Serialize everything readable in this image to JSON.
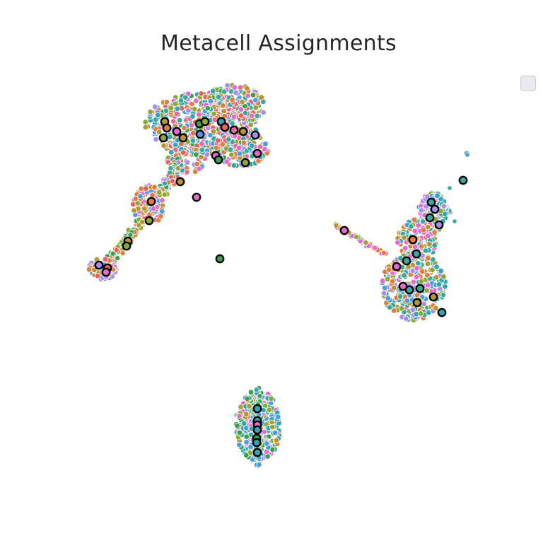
{
  "chart_data": {
    "type": "scatter",
    "title": "Metacell Assignments",
    "xlabel": "",
    "ylabel": "",
    "axes_visible": false,
    "grid": false,
    "legend": {
      "placement": "top-right",
      "entries": []
    },
    "palette": [
      "#e6615f",
      "#e27d3b",
      "#b5962f",
      "#8ea831",
      "#3ca14d",
      "#35a99a",
      "#33a6b6",
      "#4c9be6",
      "#a48ef0",
      "#e769cf",
      "#ec6a9a"
    ],
    "cell_clusters": [
      {
        "name": "cluster-upper-left",
        "x_range": [
          120,
          390
        ],
        "y_range": [
          118,
          400
        ]
      },
      {
        "name": "cluster-right",
        "x_range": [
          468,
          668
        ],
        "y_range": [
          212,
          458
        ]
      },
      {
        "name": "cluster-bottom",
        "x_range": [
          328,
          402
        ],
        "y_range": [
          546,
          660
        ]
      }
    ],
    "metacells": [
      {
        "x": 233,
        "y": 172,
        "color": "#b5962f"
      },
      {
        "x": 236,
        "y": 181,
        "color": "#e27d3b"
      },
      {
        "x": 231,
        "y": 195,
        "color": "#8ea831"
      },
      {
        "x": 250,
        "y": 186,
        "color": "#e769cf"
      },
      {
        "x": 259,
        "y": 195,
        "color": "#b5962f"
      },
      {
        "x": 282,
        "y": 175,
        "color": "#3ca14d"
      },
      {
        "x": 283,
        "y": 190,
        "color": "#4c9be6"
      },
      {
        "x": 290,
        "y": 172,
        "color": "#8ea831"
      },
      {
        "x": 313,
        "y": 172,
        "color": "#33a6b6"
      },
      {
        "x": 318,
        "y": 180,
        "color": "#e6615f"
      },
      {
        "x": 331,
        "y": 184,
        "color": "#ec6a9a"
      },
      {
        "x": 344,
        "y": 186,
        "color": "#b5962f"
      },
      {
        "x": 361,
        "y": 191,
        "color": "#a48ef0"
      },
      {
        "x": 305,
        "y": 220,
        "color": "#e769cf"
      },
      {
        "x": 309,
        "y": 226,
        "color": "#3ca14d"
      },
      {
        "x": 364,
        "y": 217,
        "color": "#e769cf"
      },
      {
        "x": 347,
        "y": 230,
        "color": "#8ea831"
      },
      {
        "x": 255,
        "y": 257,
        "color": "#b5962f"
      },
      {
        "x": 278,
        "y": 279,
        "color": "#e769cf"
      },
      {
        "x": 214,
        "y": 285,
        "color": "#e27d3b"
      },
      {
        "x": 211,
        "y": 312,
        "color": "#8ea831"
      },
      {
        "x": 181,
        "y": 341,
        "color": "#b5962f"
      },
      {
        "x": 179,
        "y": 348,
        "color": "#8ea831"
      },
      {
        "x": 140,
        "y": 375,
        "color": "#a48ef0"
      },
      {
        "x": 152,
        "y": 379,
        "color": "#e6615f"
      },
      {
        "x": 150,
        "y": 385,
        "color": "#e769cf"
      },
      {
        "x": 311,
        "y": 366,
        "color": "#3ca14d"
      },
      {
        "x": 655,
        "y": 255,
        "color": "#35a99a"
      },
      {
        "x": 487,
        "y": 326,
        "color": "#e769cf"
      },
      {
        "x": 610,
        "y": 286,
        "color": "#35a99a"
      },
      {
        "x": 615,
        "y": 296,
        "color": "#a48ef0"
      },
      {
        "x": 608,
        "y": 308,
        "color": "#35a99a"
      },
      {
        "x": 621,
        "y": 318,
        "color": "#a48ef0"
      },
      {
        "x": 584,
        "y": 339,
        "color": "#e27d3b"
      },
      {
        "x": 589,
        "y": 359,
        "color": "#35a99a"
      },
      {
        "x": 575,
        "y": 369,
        "color": "#35a99a"
      },
      {
        "x": 561,
        "y": 377,
        "color": "#e769cf"
      },
      {
        "x": 570,
        "y": 405,
        "color": "#e769cf"
      },
      {
        "x": 579,
        "y": 410,
        "color": "#35a99a"
      },
      {
        "x": 594,
        "y": 408,
        "color": "#35a99a"
      },
      {
        "x": 613,
        "y": 420,
        "color": "#b5962f"
      },
      {
        "x": 590,
        "y": 428,
        "color": "#b5962f"
      },
      {
        "x": 625,
        "y": 442,
        "color": "#33a6b6"
      },
      {
        "x": 364,
        "y": 578,
        "color": "#33a6b6"
      },
      {
        "x": 364,
        "y": 595,
        "color": "#33a6b6"
      },
      {
        "x": 364,
        "y": 601,
        "color": "#e769cf"
      },
      {
        "x": 364,
        "y": 608,
        "color": "#33a6b6"
      },
      {
        "x": 363,
        "y": 620,
        "color": "#3ca14d"
      },
      {
        "x": 363,
        "y": 626,
        "color": "#33a6b6"
      },
      {
        "x": 364,
        "y": 640,
        "color": "#33a6b6"
      }
    ]
  }
}
